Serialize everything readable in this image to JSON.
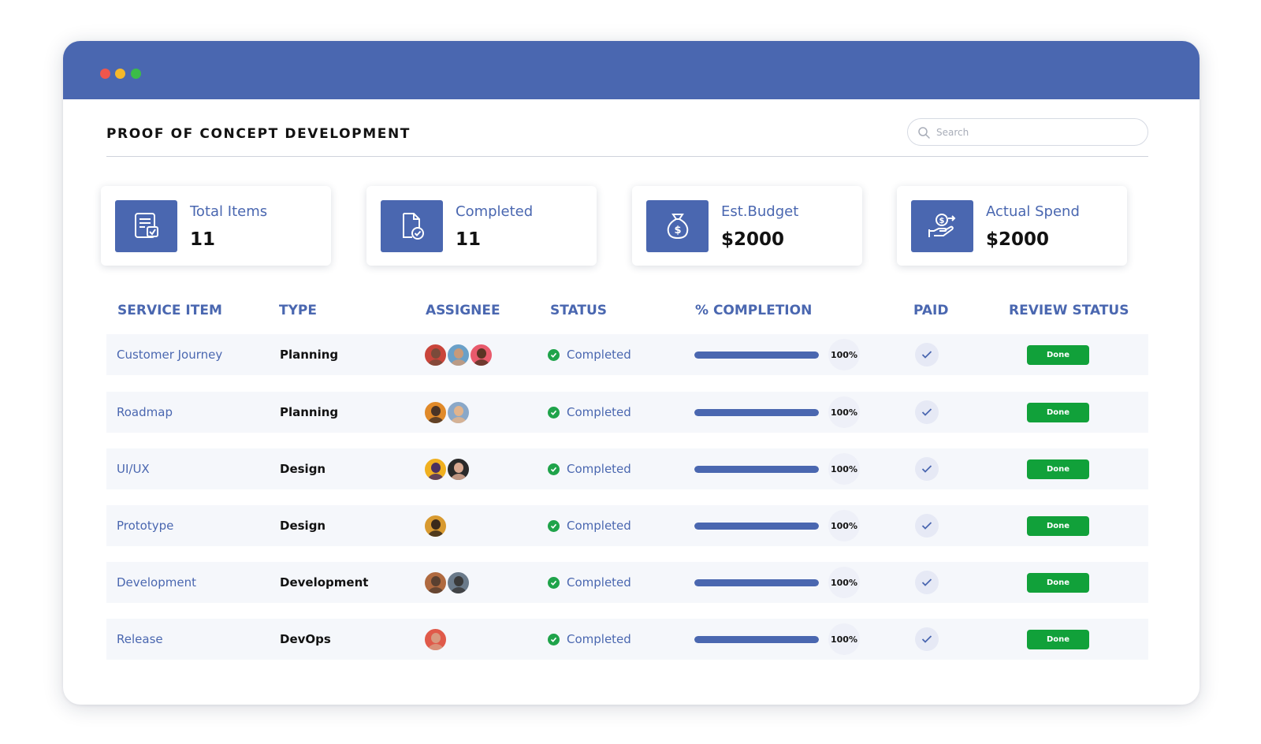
{
  "window": {
    "controls": [
      "close",
      "minimize",
      "maximize"
    ]
  },
  "header": {
    "title": "PROOF OF CONCEPT DEVELOPMENT",
    "search_placeholder": "Search"
  },
  "stats": [
    {
      "label": "Total Items",
      "value": "11",
      "icon": "checklist-icon"
    },
    {
      "label": "Completed",
      "value": "11",
      "icon": "document-check-icon"
    },
    {
      "label": "Est.Budget",
      "value": "$2000",
      "icon": "money-bag-icon"
    },
    {
      "label": "Actual Spend",
      "value": "$2000",
      "icon": "hand-dollar-icon"
    }
  ],
  "table": {
    "columns": [
      "SERVICE ITEM",
      "TYPE",
      "ASSIGNEE",
      "STATUS",
      "% COMPLETION",
      "PAID",
      "REVIEW STATUS"
    ],
    "rows": [
      {
        "service": "Customer Journey",
        "type": "Planning",
        "assignees": 3,
        "status": "Completed",
        "completion": 100,
        "completion_label": "100%",
        "paid": true,
        "review": "Done"
      },
      {
        "service": "Roadmap",
        "type": "Planning",
        "assignees": 2,
        "status": "Completed",
        "completion": 100,
        "completion_label": "100%",
        "paid": true,
        "review": "Done"
      },
      {
        "service": "UI/UX",
        "type": "Design",
        "assignees": 2,
        "status": "Completed",
        "completion": 100,
        "completion_label": "100%",
        "paid": true,
        "review": "Done"
      },
      {
        "service": "Prototype",
        "type": "Design",
        "assignees": 1,
        "status": "Completed",
        "completion": 100,
        "completion_label": "100%",
        "paid": true,
        "review": "Done"
      },
      {
        "service": "Development",
        "type": "Development",
        "assignees": 2,
        "status": "Completed",
        "completion": 100,
        "completion_label": "100%",
        "paid": true,
        "review": "Done"
      },
      {
        "service": "Release",
        "type": "DevOps",
        "assignees": 1,
        "status": "Completed",
        "completion": 100,
        "completion_label": "100%",
        "paid": true,
        "review": "Done"
      }
    ]
  },
  "colors": {
    "accent": "#4a67b0",
    "success": "#11a13a",
    "row_background": "#f5f7fb"
  }
}
